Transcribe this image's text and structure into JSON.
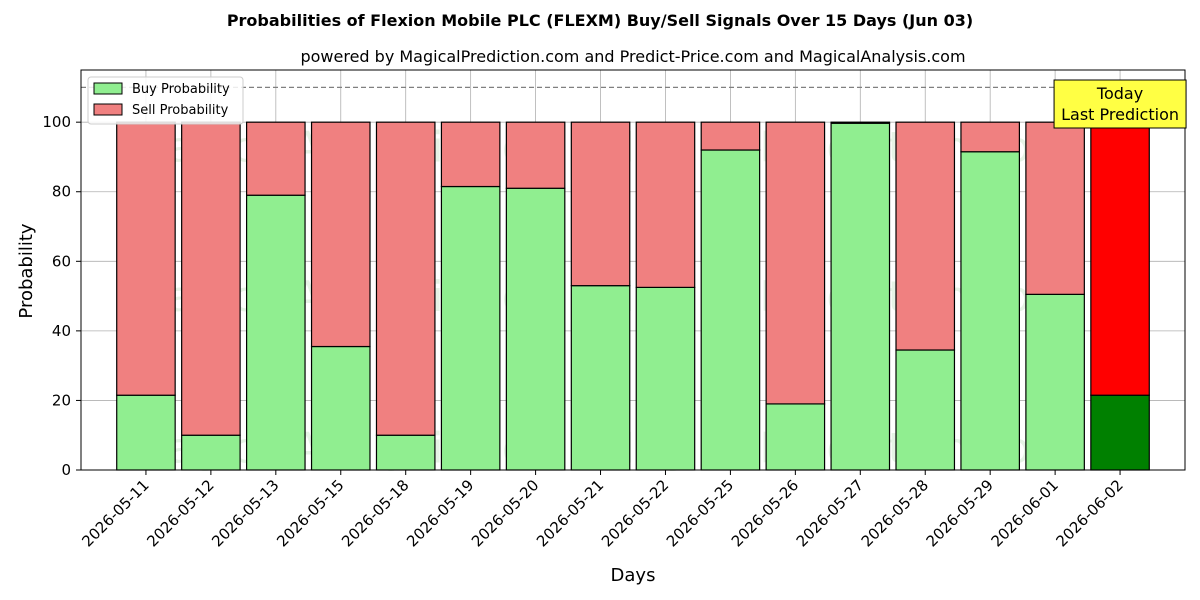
{
  "chart_data": {
    "type": "bar",
    "stacked": true,
    "title": "Probabilities of Flexion Mobile PLC (FLEXM) Buy/Sell Signals Over 15 Days (Jun 03)",
    "subtitle": "powered by MagicalPrediction.com and Predict-Price.com and MagicalAnalysis.com",
    "xlabel": "Days",
    "ylabel": "Probability",
    "ylim": [
      0,
      115
    ],
    "yticks": [
      0,
      20,
      40,
      60,
      80,
      100
    ],
    "grid": true,
    "legend_position": "top-left",
    "reference_line": 110,
    "categories": [
      "2026-05-11",
      "2026-05-12",
      "2026-05-13",
      "2026-05-15",
      "2026-05-18",
      "2026-05-19",
      "2026-05-20",
      "2026-05-21",
      "2026-05-22",
      "2026-05-25",
      "2026-05-26",
      "2026-05-27",
      "2026-05-28",
      "2026-05-29",
      "2026-06-01",
      "2026-06-02"
    ],
    "series": [
      {
        "name": "Buy Probability",
        "color": "#90ee90",
        "last_color": "#008000",
        "values": [
          21.5,
          10,
          79,
          35.5,
          10,
          81.5,
          81,
          53,
          52.5,
          92,
          19,
          99.7,
          34.5,
          91.5,
          50.5,
          21.5
        ]
      },
      {
        "name": "Sell Probability",
        "color": "#f08080",
        "last_color": "#ff0000",
        "values": [
          78.5,
          90,
          21,
          64.5,
          90,
          18.5,
          19,
          47,
          47.5,
          8,
          81,
          0.3,
          65.5,
          8.5,
          49.5,
          78.5
        ]
      }
    ],
    "annotation": {
      "line1": "Today",
      "line2": "Last Prediction",
      "color": "#ffff44"
    },
    "watermarks": [
      "MagicalAnalysis.com",
      "MagicalPrediction.com"
    ]
  }
}
